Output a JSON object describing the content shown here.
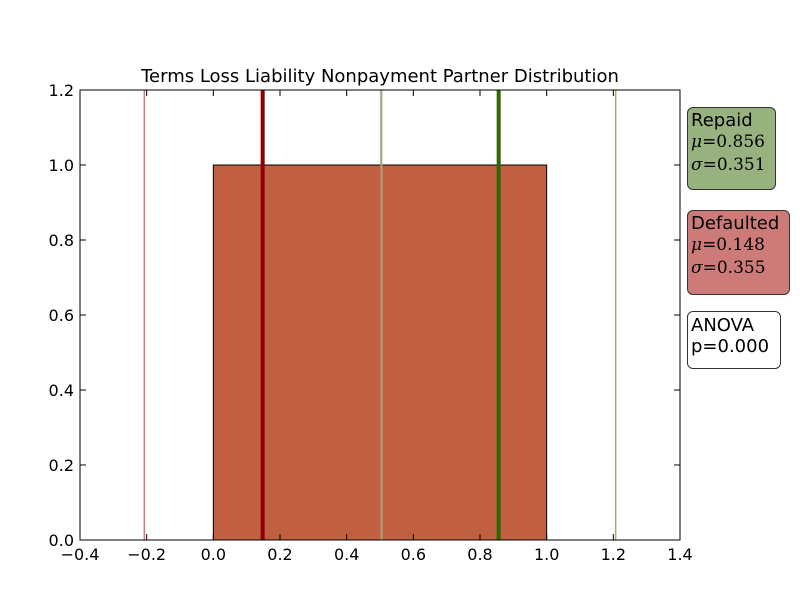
{
  "chart_data": {
    "type": "bar",
    "title": "Terms Loss Liability Nonpayment Partner Distribution",
    "xlabel": "",
    "ylabel": "",
    "xlim": [
      -0.4,
      1.4
    ],
    "ylim": [
      0.0,
      1.2
    ],
    "x_ticks": [
      "−0.4",
      "−0.2",
      "0.0",
      "0.2",
      "0.4",
      "0.6",
      "0.8",
      "1.0",
      "1.2",
      "1.4"
    ],
    "y_ticks": [
      "0.0",
      "0.2",
      "0.4",
      "0.6",
      "0.8",
      "1.0",
      "1.2"
    ],
    "x_tick_values": [
      -0.4,
      -0.2,
      0.0,
      0.2,
      0.4,
      0.6,
      0.8,
      1.0,
      1.2,
      1.4
    ],
    "y_tick_values": [
      0.0,
      0.2,
      0.4,
      0.6,
      0.8,
      1.0,
      1.2
    ],
    "bars": [
      {
        "x0": 0.0,
        "x1": 1.0,
        "height": 1.0,
        "color": "#c06040"
      }
    ],
    "vlines": [
      {
        "series": "Defaulted",
        "kind": "mean",
        "x": 0.148,
        "color": "#8b0000",
        "weight": "thick"
      },
      {
        "series": "Defaulted",
        "kind": "mean - std",
        "x": -0.207,
        "color": "#cc7b78",
        "weight": "thin"
      },
      {
        "series": "Defaulted",
        "kind": "mean + std",
        "x": 0.503,
        "color": "#cc7b78",
        "weight": "thin"
      },
      {
        "series": "Repaid",
        "kind": "mean",
        "x": 0.856,
        "color": "#336600",
        "weight": "thick"
      },
      {
        "series": "Repaid",
        "kind": "mean - std",
        "x": 0.505,
        "color": "#97b27e",
        "weight": "thin"
      },
      {
        "series": "Repaid",
        "kind": "mean + std",
        "x": 1.207,
        "color": "#97b27e",
        "weight": "thin"
      }
    ],
    "grid": false,
    "annotations": {
      "repaid": {
        "label": "Repaid",
        "mu": "=0.856",
        "sigma": "=0.351",
        "color": "#97b27e"
      },
      "defaulted": {
        "label": "Defaulted",
        "mu": "=0.148",
        "sigma": "=0.355",
        "color": "#cc7b78"
      },
      "anova": {
        "label": "ANOVA",
        "p": "p=0.000"
      }
    }
  }
}
